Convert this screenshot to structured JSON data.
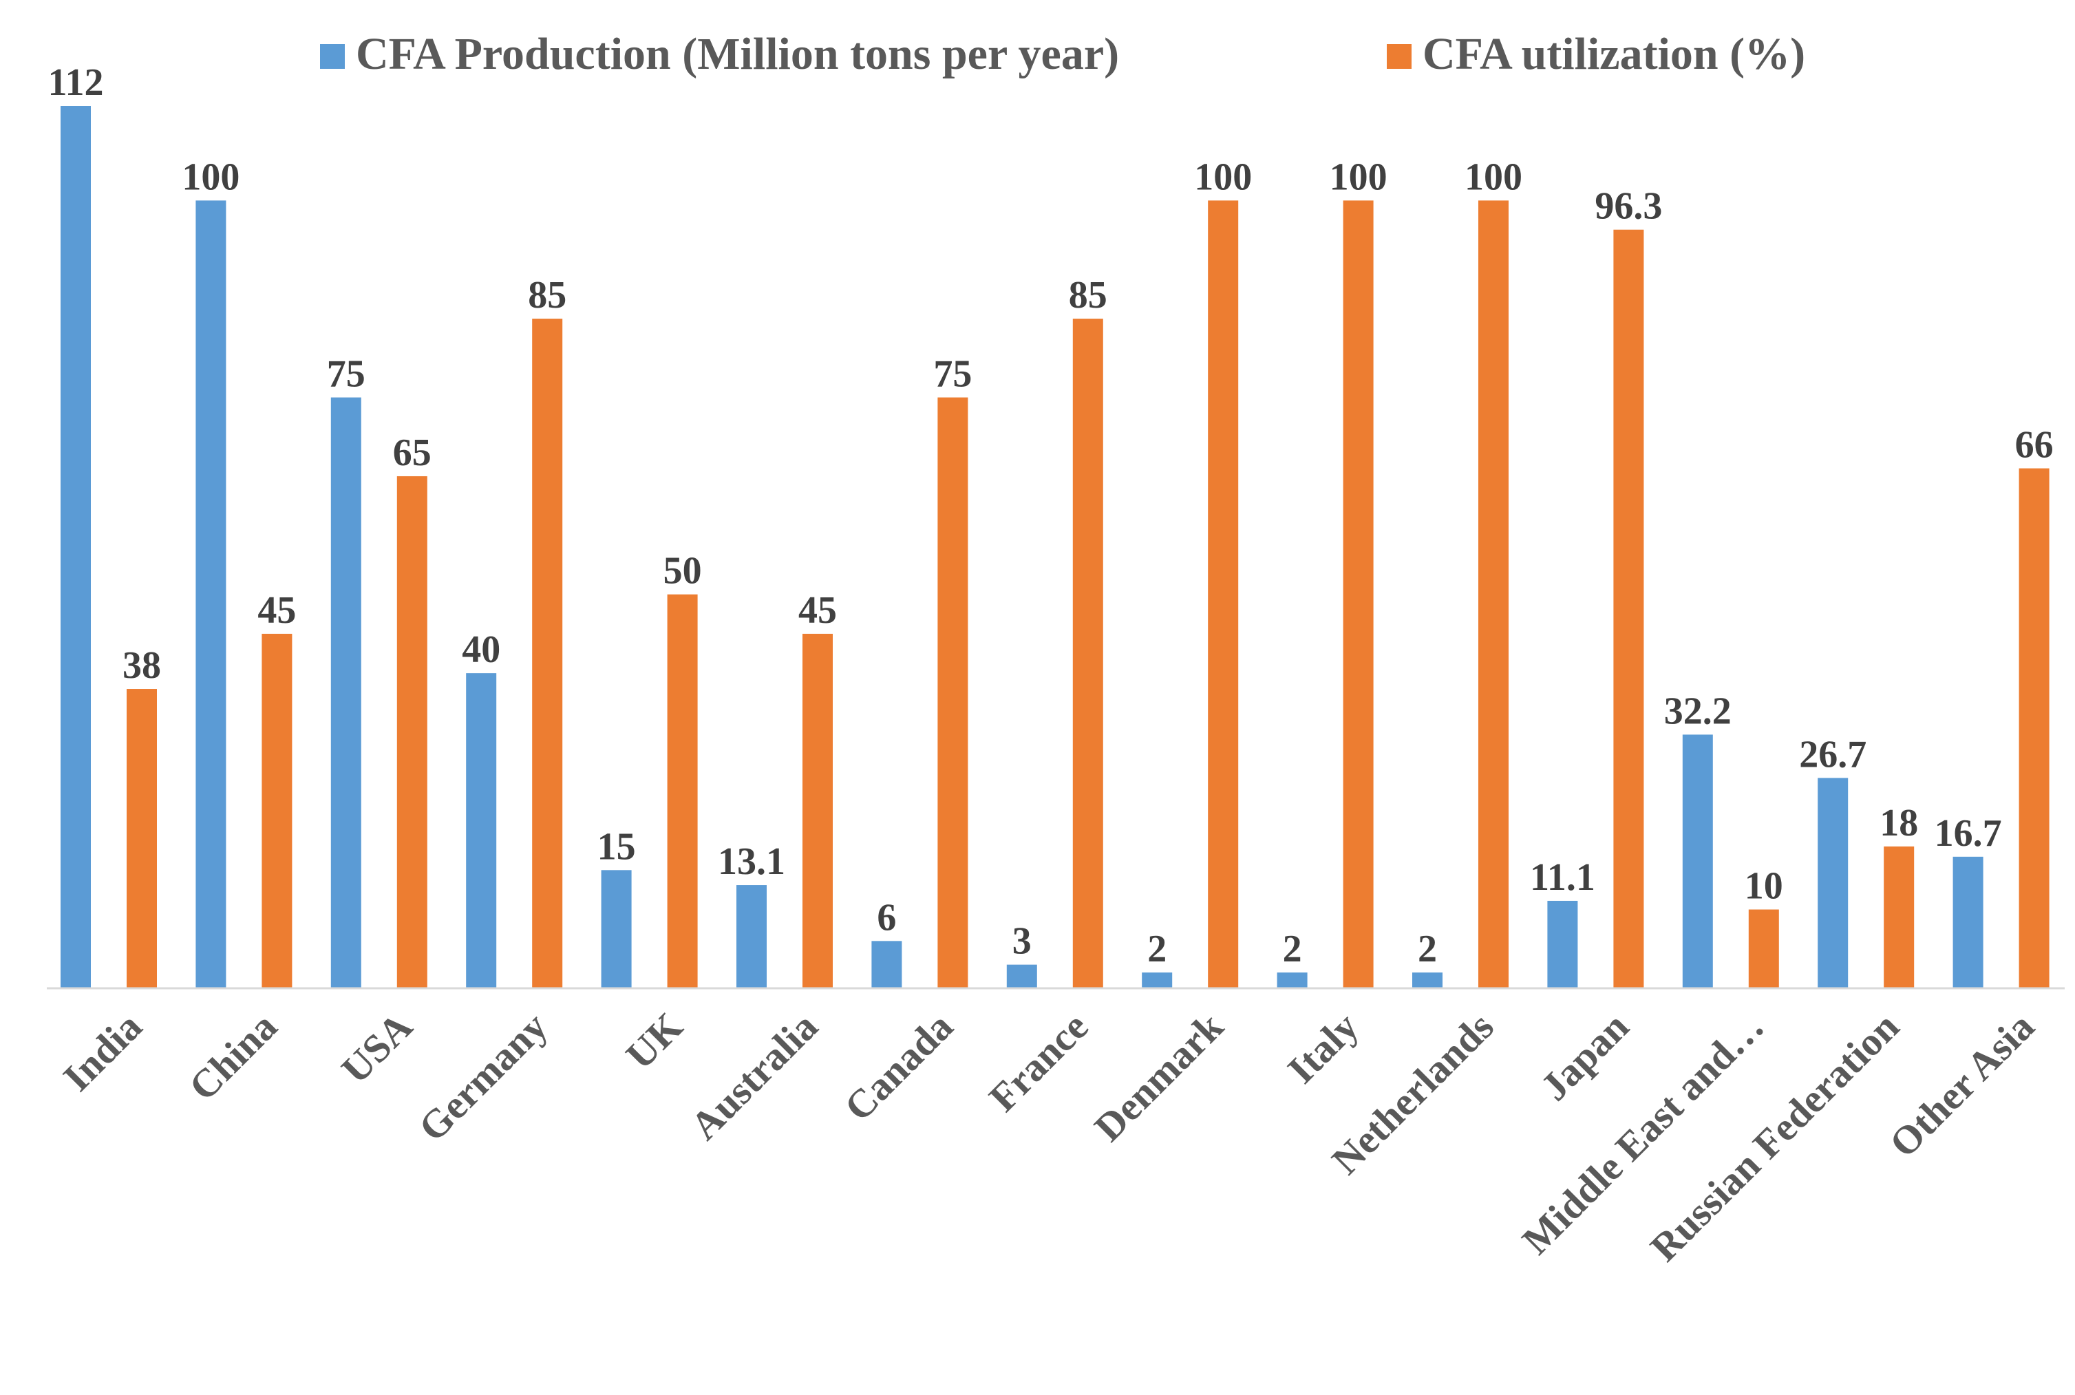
{
  "chart_data": {
    "type": "bar",
    "title": "",
    "xlabel": "",
    "ylabel": "",
    "ylim": [
      0,
      112
    ],
    "grid": false,
    "legend_position": "top",
    "categories": [
      "India",
      "China",
      "USA",
      "Germany",
      "UK",
      "Australia",
      "Canada",
      "France",
      "Denmark",
      "Italy",
      "Netherlands",
      "Japan",
      "Middle East and…",
      "Russian Federation",
      "Other Asia"
    ],
    "series": [
      {
        "name": "CFA Production (Million tons per year)",
        "color": "#5B9BD5",
        "values": [
          112,
          100,
          75,
          40,
          15,
          13.1,
          6,
          3,
          2,
          2,
          2,
          11.1,
          32.2,
          26.7,
          16.7
        ],
        "labels": [
          "112",
          "100",
          "75",
          "40",
          "15",
          "13.1",
          "6",
          "3",
          "2",
          "2",
          "2",
          "11.1",
          "32.2",
          "26.7",
          "16.7"
        ]
      },
      {
        "name": "CFA utilization (%)",
        "color": "#ED7D31",
        "values": [
          38,
          45,
          65,
          85,
          50,
          45,
          75,
          85,
          100,
          100,
          100,
          96.3,
          10,
          18,
          66
        ],
        "labels": [
          "38",
          "45",
          "65",
          "85",
          "50",
          "45",
          "75",
          "85",
          "100",
          "100",
          "100",
          "96.3",
          "10",
          "18",
          "66"
        ]
      }
    ]
  }
}
